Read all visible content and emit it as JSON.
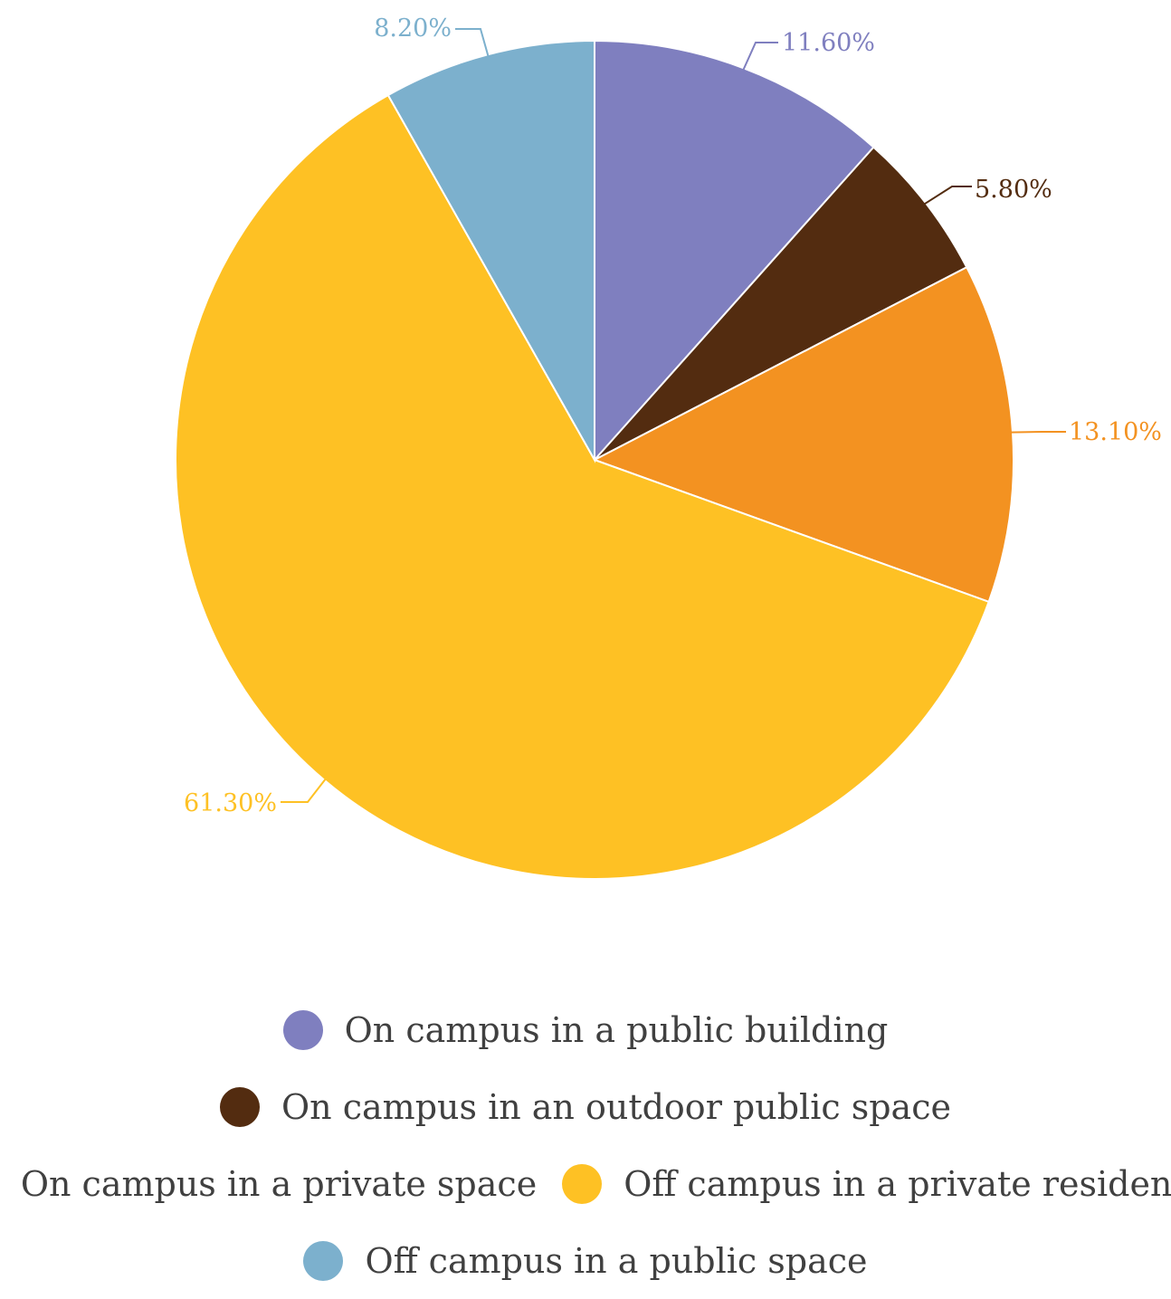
{
  "chart_data": {
    "type": "pie",
    "title": "",
    "slices": [
      {
        "label": "On campus in a public building",
        "value": 11.6,
        "display": "11.60%",
        "color": "#7F7FBF"
      },
      {
        "label": "On campus in an outdoor public space",
        "value": 5.8,
        "display": "5.80%",
        "color": "#532C10"
      },
      {
        "label": "On campus in a private space",
        "value": 13.1,
        "display": "13.10%",
        "color": "#F39221"
      },
      {
        "label": "Off campus in a private residence",
        "value": 61.3,
        "display": "61.30%",
        "color": "#FEC124"
      },
      {
        "label": "Off campus in a public space",
        "value": 8.2,
        "display": "8.20%",
        "color": "#7CB0CD"
      }
    ],
    "legend_placement": "bottom",
    "data_labels": "outside with leader lines"
  },
  "legend": {
    "rows": [
      [
        0
      ],
      [
        1
      ],
      [
        2,
        3
      ],
      [
        4
      ]
    ]
  }
}
